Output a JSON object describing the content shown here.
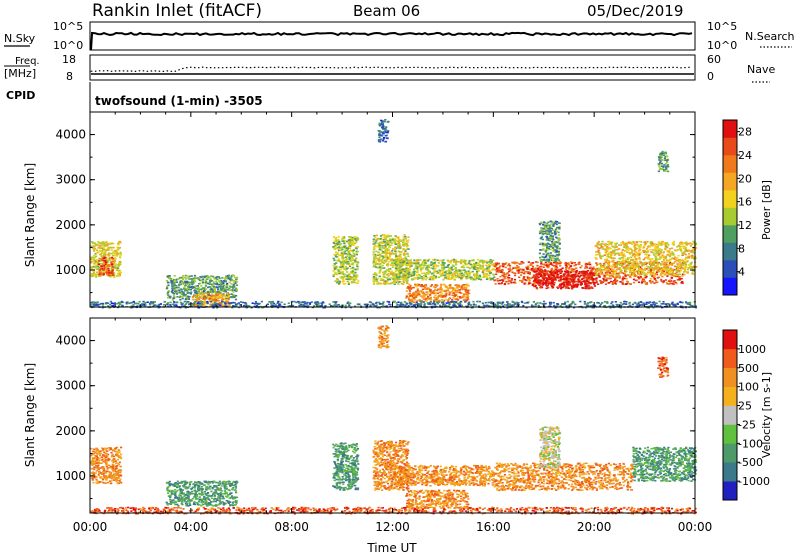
{
  "header": {
    "title": "Rankin Inlet (fitACF)",
    "beam": "Beam 06",
    "date": "05/Dec/2019"
  },
  "top_panels": {
    "nsky_label": "N.Sky",
    "nsearch_label": "N.Search",
    "nsky_ticks": [
      "10^5",
      "10^0"
    ],
    "nsearch_ticks": [
      "10^5",
      "10^0"
    ],
    "freq_label": "Freq.",
    "freq_unit": "[MHz]",
    "freq_ticks": [
      "18",
      "8"
    ],
    "nave_ticks": [
      "60",
      "0"
    ],
    "nave_label": "Nave",
    "cpid_label": "CPID",
    "cpid_text": "twofsound (1-min) -3505"
  },
  "chart_data": [
    {
      "type": "heatmap",
      "panel": "power",
      "xlabel": "",
      "ylabel": "Slant Range [km]",
      "x_ticks": [
        "00:00",
        "04:00",
        "08:00",
        "12:00",
        "16:00",
        "20:00",
        "00:00"
      ],
      "y_ticks": [
        "1000",
        "2000",
        "3000",
        "4000"
      ],
      "ylim": [
        180,
        4500
      ],
      "xlim_hours": [
        0,
        24
      ],
      "colorbar": {
        "label": "Power [dB]",
        "ticks": [
          "4",
          "8",
          "12",
          "16",
          "20",
          "24",
          "28"
        ],
        "range": [
          0,
          30
        ],
        "colors": [
          "#1515ff",
          "#2a4fb8",
          "#3a7a8a",
          "#4fa060",
          "#a8cc30",
          "#f2d21e",
          "#f5a623",
          "#f07a1a",
          "#e84a1a",
          "#e01010"
        ]
      },
      "regions": [
        {
          "t0": 0.0,
          "t1": 1.2,
          "r0": 850,
          "r1": 1650,
          "v": 16
        },
        {
          "t0": 0.3,
          "t1": 0.9,
          "r0": 900,
          "r1": 1300,
          "v": 25
        },
        {
          "t0": 3.0,
          "t1": 5.8,
          "r0": 350,
          "r1": 900,
          "v": 10
        },
        {
          "t0": 4.0,
          "t1": 5.5,
          "r0": 200,
          "r1": 500,
          "v": 20
        },
        {
          "t0": 9.6,
          "t1": 10.6,
          "r0": 700,
          "r1": 1750,
          "v": 14
        },
        {
          "t0": 11.2,
          "t1": 12.6,
          "r0": 700,
          "r1": 1800,
          "v": 15
        },
        {
          "t0": 12.5,
          "t1": 15.0,
          "r0": 300,
          "r1": 700,
          "v": 22
        },
        {
          "t0": 12.0,
          "t1": 16.0,
          "r0": 800,
          "r1": 1250,
          "v": 14
        },
        {
          "t0": 16.0,
          "t1": 23.5,
          "r0": 700,
          "r1": 1200,
          "v": 25
        },
        {
          "t0": 17.5,
          "t1": 20.0,
          "r0": 600,
          "r1": 1000,
          "v": 29
        },
        {
          "t0": 20.0,
          "t1": 24.0,
          "r0": 900,
          "r1": 1650,
          "v": 17
        },
        {
          "t0": 17.8,
          "t1": 18.6,
          "r0": 1200,
          "r1": 2100,
          "v": 10
        },
        {
          "t0": 0.0,
          "t1": 24.0,
          "r0": 180,
          "r1": 320,
          "v": 7
        },
        {
          "t0": 11.4,
          "t1": 11.8,
          "r0": 3850,
          "r1": 4350,
          "v": 6
        },
        {
          "t0": 22.5,
          "t1": 22.9,
          "r0": 3200,
          "r1": 3650,
          "v": 10
        }
      ]
    },
    {
      "type": "heatmap",
      "panel": "velocity",
      "xlabel": "Time UT",
      "ylabel": "Slant Range [km]",
      "x_ticks": [
        "00:00",
        "04:00",
        "08:00",
        "12:00",
        "16:00",
        "20:00",
        "00:00"
      ],
      "y_ticks": [
        "1000",
        "2000",
        "3000",
        "4000"
      ],
      "ylim": [
        180,
        4500
      ],
      "xlim_hours": [
        0,
        24
      ],
      "colorbar": {
        "label": "Velocity [m s-1]",
        "ticks": [
          "1000",
          "500",
          "100",
          "25",
          "-25",
          "-100",
          "-500",
          "-1000"
        ],
        "colors": [
          "#2020c0",
          "#3a7a8a",
          "#4f9a6a",
          "#60c040",
          "#c0c0c0",
          "#f5b020",
          "#f09020",
          "#f05a1a",
          "#e01010"
        ]
      },
      "regions": [
        {
          "t0": 0.0,
          "t1": 1.2,
          "r0": 850,
          "r1": 1650,
          "c": 6
        },
        {
          "t0": 3.0,
          "t1": 5.8,
          "r0": 350,
          "r1": 900,
          "c": 2
        },
        {
          "t0": 9.6,
          "t1": 10.6,
          "r0": 700,
          "r1": 1750,
          "c": 2
        },
        {
          "t0": 11.2,
          "t1": 12.6,
          "r0": 700,
          "r1": 1800,
          "c": 6
        },
        {
          "t0": 12.5,
          "t1": 15.0,
          "r0": 300,
          "r1": 700,
          "c": 6
        },
        {
          "t0": 12.0,
          "t1": 16.0,
          "r0": 800,
          "r1": 1250,
          "c": 6
        },
        {
          "t0": 16.0,
          "t1": 21.5,
          "r0": 700,
          "r1": 1300,
          "c": 6
        },
        {
          "t0": 21.5,
          "t1": 24.0,
          "r0": 900,
          "r1": 1650,
          "c": 2
        },
        {
          "t0": 17.8,
          "t1": 18.6,
          "r0": 1200,
          "r1": 2100,
          "c": 4
        },
        {
          "t0": 0.0,
          "t1": 24.0,
          "r0": 180,
          "r1": 320,
          "c": 7
        },
        {
          "t0": 11.4,
          "t1": 11.8,
          "r0": 3850,
          "r1": 4350,
          "c": 6
        },
        {
          "t0": 22.5,
          "t1": 22.9,
          "r0": 3200,
          "r1": 3650,
          "c": 7
        }
      ]
    }
  ]
}
